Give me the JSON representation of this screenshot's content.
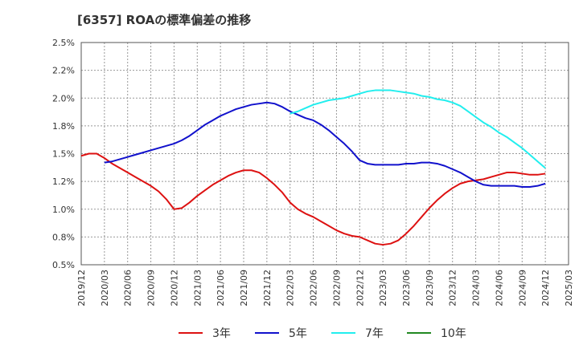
{
  "chart_data": {
    "type": "line",
    "title": "[6357]  ROAの標準偏差の推移",
    "xlabel": "",
    "ylabel": "",
    "ylim": [
      0.5,
      2.5
    ],
    "y_ticks": [
      "0.5%",
      "0.8%",
      "1.0%",
      "1.2%",
      "1.5%",
      "1.8%",
      "2.0%",
      "2.2%",
      "2.5%"
    ],
    "y_tick_values": [
      0.5,
      0.75,
      1.0,
      1.25,
      1.5,
      1.75,
      2.0,
      2.25,
      2.5
    ],
    "x_ticks": [
      "2019/12",
      "2020/03",
      "2020/06",
      "2020/09",
      "2020/12",
      "2021/03",
      "2021/06",
      "2021/09",
      "2021/12",
      "2022/03",
      "2022/06",
      "2022/09",
      "2022/12",
      "2023/03",
      "2023/06",
      "2023/09",
      "2023/12",
      "2024/03",
      "2024/06",
      "2024/09",
      "2024/12",
      "2025/03"
    ],
    "grid": true,
    "legend_position": "bottom",
    "series": [
      {
        "name": "3年",
        "color": "#dd1111",
        "x": [
          "2019/12",
          "2020/01",
          "2020/02",
          "2020/03",
          "2020/04",
          "2020/05",
          "2020/06",
          "2020/07",
          "2020/08",
          "2020/09",
          "2020/10",
          "2020/11",
          "2020/12",
          "2021/01",
          "2021/02",
          "2021/03",
          "2021/04",
          "2021/05",
          "2021/06",
          "2021/07",
          "2021/08",
          "2021/09",
          "2021/10",
          "2021/11",
          "2021/12",
          "2022/01",
          "2022/02",
          "2022/03",
          "2022/04",
          "2022/05",
          "2022/06",
          "2022/07",
          "2022/08",
          "2022/09",
          "2022/10",
          "2022/11",
          "2022/12",
          "2023/01",
          "2023/02",
          "2023/03",
          "2023/04",
          "2023/05",
          "2023/06",
          "2023/07",
          "2023/08",
          "2023/09",
          "2023/10",
          "2023/11",
          "2023/12",
          "2024/01",
          "2024/02",
          "2024/03",
          "2024/04",
          "2024/05",
          "2024/06",
          "2024/07",
          "2024/08",
          "2024/09",
          "2024/10",
          "2024/11",
          "2024/12"
        ],
        "values": [
          1.48,
          1.5,
          1.5,
          1.46,
          1.41,
          1.37,
          1.33,
          1.29,
          1.25,
          1.21,
          1.16,
          1.09,
          1.0,
          1.01,
          1.06,
          1.12,
          1.17,
          1.22,
          1.26,
          1.3,
          1.33,
          1.35,
          1.35,
          1.33,
          1.28,
          1.22,
          1.15,
          1.06,
          1.0,
          0.96,
          0.93,
          0.89,
          0.85,
          0.81,
          0.78,
          0.76,
          0.75,
          0.72,
          0.69,
          0.68,
          0.69,
          0.72,
          0.78,
          0.85,
          0.93,
          1.01,
          1.08,
          1.14,
          1.19,
          1.23,
          1.25,
          1.26,
          1.27,
          1.29,
          1.31,
          1.33,
          1.33,
          1.32,
          1.31,
          1.31,
          1.32
        ]
      },
      {
        "name": "5年",
        "color": "#1111cc",
        "x": [
          "2020/03",
          "2020/04",
          "2020/05",
          "2020/06",
          "2020/07",
          "2020/08",
          "2020/09",
          "2020/10",
          "2020/11",
          "2020/12",
          "2021/01",
          "2021/02",
          "2021/03",
          "2021/04",
          "2021/05",
          "2021/06",
          "2021/07",
          "2021/08",
          "2021/09",
          "2021/10",
          "2021/11",
          "2021/12",
          "2022/01",
          "2022/02",
          "2022/03",
          "2022/04",
          "2022/05",
          "2022/06",
          "2022/07",
          "2022/08",
          "2022/09",
          "2022/10",
          "2022/11",
          "2022/12",
          "2023/01",
          "2023/02",
          "2023/03",
          "2023/04",
          "2023/05",
          "2023/06",
          "2023/07",
          "2023/08",
          "2023/09",
          "2023/10",
          "2023/11",
          "2023/12",
          "2024/01",
          "2024/02",
          "2024/03",
          "2024/04",
          "2024/05",
          "2024/06",
          "2024/07",
          "2024/08",
          "2024/09",
          "2024/10",
          "2024/11",
          "2024/12"
        ],
        "values": [
          1.42,
          1.43,
          1.45,
          1.47,
          1.49,
          1.51,
          1.53,
          1.55,
          1.57,
          1.59,
          1.62,
          1.66,
          1.71,
          1.76,
          1.8,
          1.84,
          1.87,
          1.9,
          1.92,
          1.94,
          1.95,
          1.96,
          1.95,
          1.92,
          1.88,
          1.85,
          1.82,
          1.8,
          1.76,
          1.71,
          1.65,
          1.59,
          1.52,
          1.44,
          1.41,
          1.4,
          1.4,
          1.4,
          1.4,
          1.41,
          1.41,
          1.42,
          1.42,
          1.41,
          1.39,
          1.36,
          1.33,
          1.29,
          1.25,
          1.22,
          1.21,
          1.21,
          1.21,
          1.21,
          1.2,
          1.2,
          1.21,
          1.23
        ]
      },
      {
        "name": "7年",
        "color": "#22eeee",
        "x": [
          "2022/03",
          "2022/04",
          "2022/05",
          "2022/06",
          "2022/07",
          "2022/08",
          "2022/09",
          "2022/10",
          "2022/11",
          "2022/12",
          "2023/01",
          "2023/02",
          "2023/03",
          "2023/04",
          "2023/05",
          "2023/06",
          "2023/07",
          "2023/08",
          "2023/09",
          "2023/10",
          "2023/11",
          "2023/12",
          "2024/01",
          "2024/02",
          "2024/03",
          "2024/04",
          "2024/05",
          "2024/06",
          "2024/07",
          "2024/08",
          "2024/09",
          "2024/10",
          "2024/11",
          "2024/12"
        ],
        "values": [
          1.86,
          1.88,
          1.91,
          1.94,
          1.96,
          1.98,
          1.99,
          2.0,
          2.02,
          2.04,
          2.06,
          2.07,
          2.07,
          2.07,
          2.06,
          2.05,
          2.04,
          2.02,
          2.01,
          1.99,
          1.98,
          1.96,
          1.93,
          1.88,
          1.83,
          1.78,
          1.74,
          1.69,
          1.65,
          1.6,
          1.55,
          1.49,
          1.43,
          1.37
        ]
      },
      {
        "name": "10年",
        "color": "#228822",
        "x": [],
        "values": []
      }
    ]
  }
}
